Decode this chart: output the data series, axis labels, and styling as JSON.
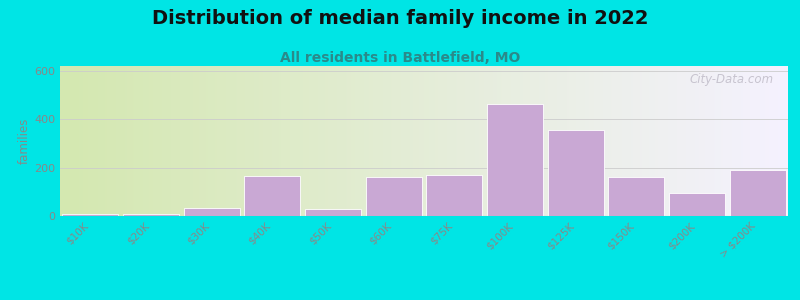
{
  "title": "Distribution of median family income in 2022",
  "subtitle": "All residents in Battlefield, MO",
  "ylabel": "families",
  "categories": [
    "$10K",
    "$20K",
    "$30K",
    "$40K",
    "$50K",
    "$60K",
    "$75K",
    "$100K",
    "$125K",
    "$150K",
    "$200K",
    "> $200K"
  ],
  "values": [
    10,
    10,
    35,
    165,
    30,
    160,
    170,
    465,
    355,
    160,
    95,
    190
  ],
  "bar_color": "#c9a8d4",
  "bar_edge_color": "#ffffff",
  "ylim": [
    0,
    620
  ],
  "yticks": [
    0,
    200,
    400,
    600
  ],
  "background_color": "#00e5e5",
  "plot_bg_left": "#d4e8b0",
  "plot_bg_right": "#f5f2ff",
  "title_fontsize": 14,
  "subtitle_fontsize": 10,
  "watermark": "City-Data.com",
  "grid_color": "#cccccc",
  "tick_label_color": "#888888",
  "title_color": "#111111",
  "subtitle_color": "#2a8a8a"
}
